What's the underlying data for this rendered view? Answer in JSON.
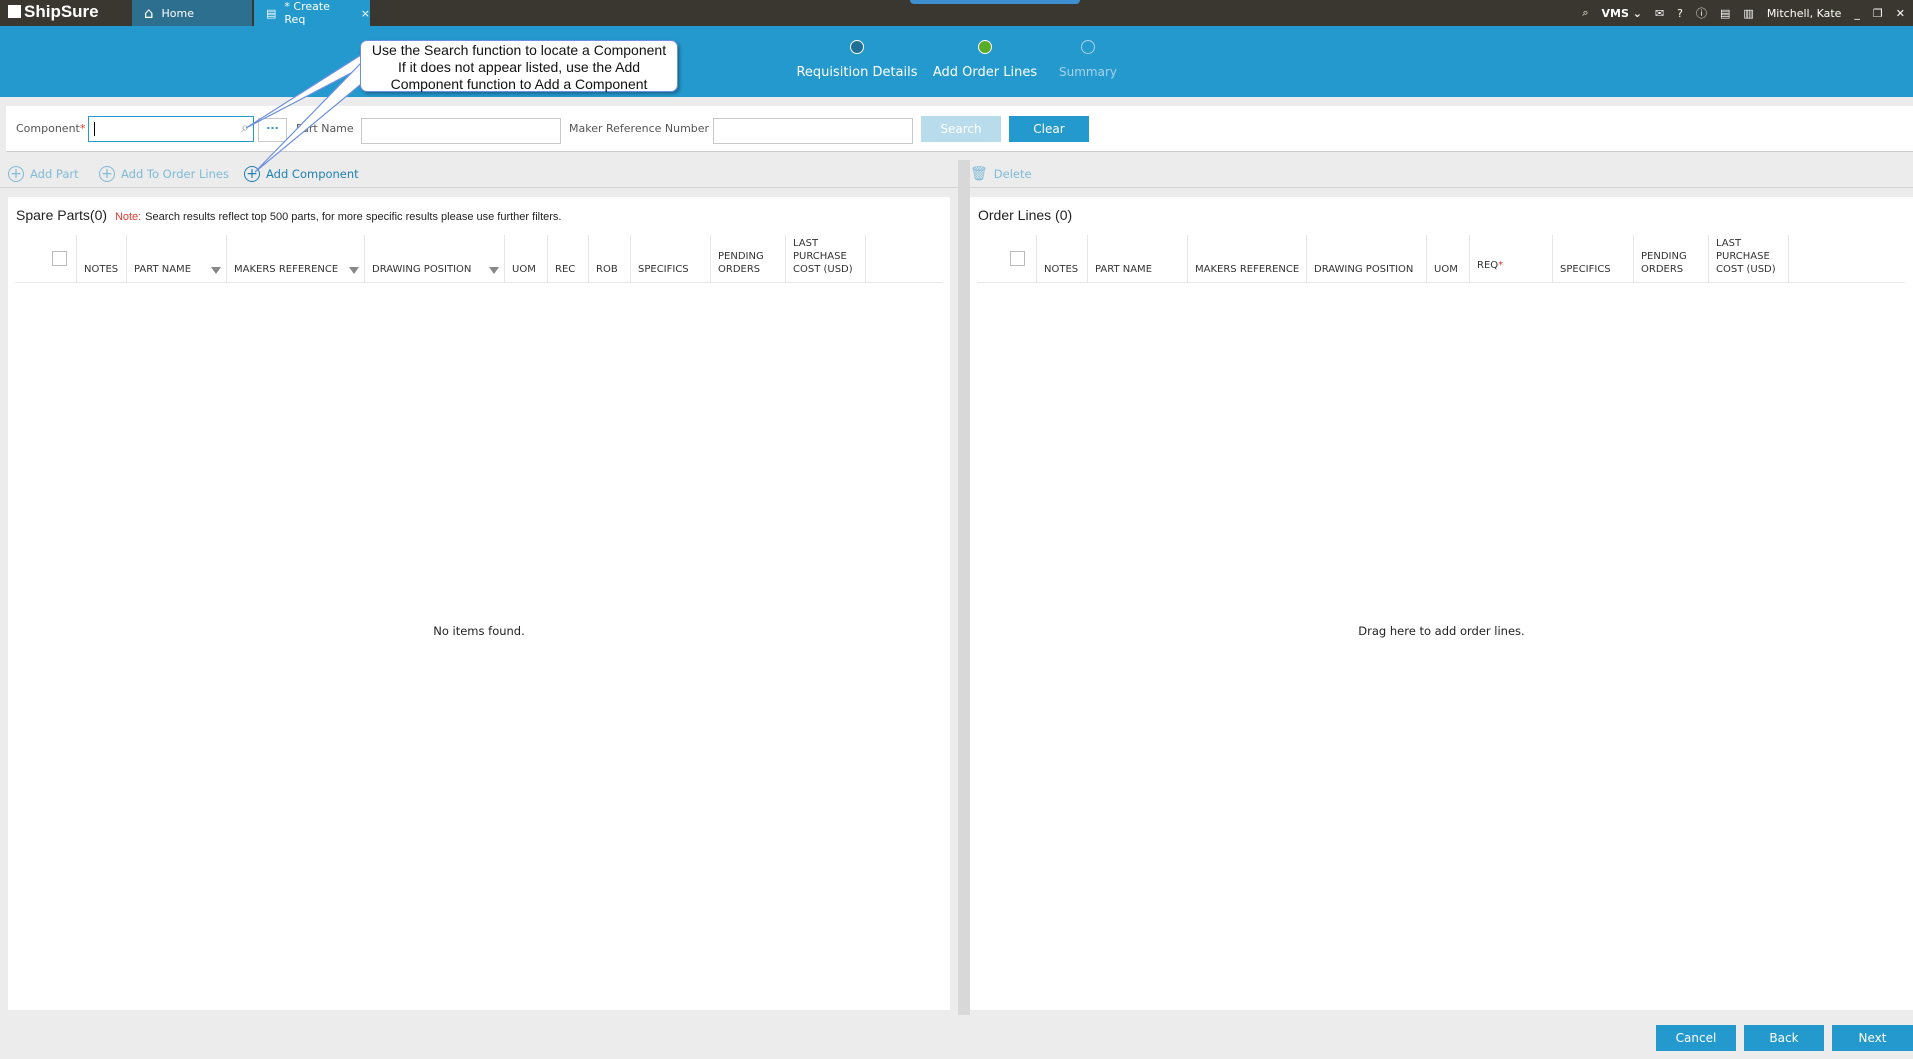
{
  "app": {
    "name": "ShipSure",
    "tabs": [
      {
        "label": "Home",
        "icon": "home-icon"
      },
      {
        "label": "* Create Req",
        "icon": "document-icon"
      }
    ],
    "header_right": {
      "vms": "VMS",
      "user": "Mitchell, Kate"
    }
  },
  "stepper": [
    {
      "label": "Requisition Details",
      "state": "done",
      "color": "#1f6f99"
    },
    {
      "label": "Add Order Lines",
      "state": "current",
      "color": "#5aad27"
    },
    {
      "label": "Summary",
      "state": "pending"
    }
  ],
  "callout": {
    "lines": [
      "Use the Search function to locate a Component",
      "If it does not appear listed, use the Add",
      "Component function to Add a Component"
    ]
  },
  "search": {
    "component_label": "Component",
    "required": "*",
    "component_value": "",
    "browse": "...",
    "part_name_label": "Part Name",
    "part_name_value": "",
    "maker_ref_label": "Maker Reference Number",
    "maker_ref_value": "",
    "search_btn": "Search",
    "clear_btn": "Clear"
  },
  "toolbar_left": {
    "add_part": "Add Part",
    "add_to_order": "Add To Order Lines",
    "add_component": "Add Component"
  },
  "toolbar_right": {
    "delete": "Delete"
  },
  "spare_parts": {
    "title": "Spare Parts(0)",
    "note_label": "Note:",
    "note": "Search results reflect top 500 parts, for more specific results please use further filters.",
    "columns": [
      "NOTES",
      "PART NAME",
      "MAKERS REFERENCE",
      "DRAWING POSITION",
      "UOM",
      "REC",
      "ROB",
      "SPECIFICS",
      "PENDING ORDERS",
      "LAST PURCHASE COST (USD)"
    ],
    "empty": "No items found."
  },
  "order_lines": {
    "title": "Order Lines (0)",
    "columns": [
      "NOTES",
      "PART NAME",
      "MAKERS REFERENCE",
      "DRAWING POSITION",
      "UOM",
      "REQ",
      "SPECIFICS",
      "PENDING ORDERS",
      "LAST PURCHASE COST (USD)"
    ],
    "empty": "Drag here to add order lines."
  },
  "footer": {
    "cancel": "Cancel",
    "back": "Back",
    "next": "Next"
  },
  "colors": {
    "accent": "#2499cd",
    "topbar": "#3a3630",
    "required": "#e23b2e"
  }
}
